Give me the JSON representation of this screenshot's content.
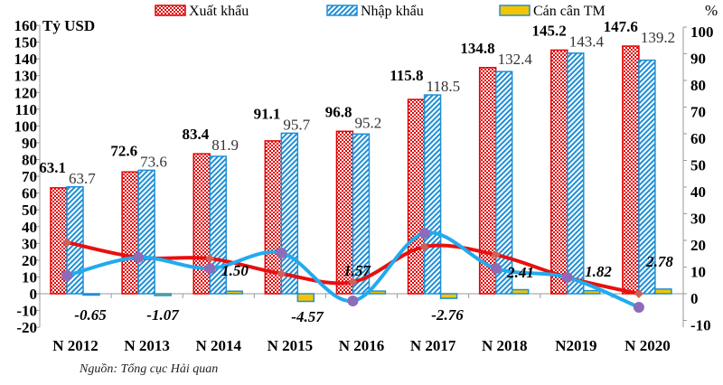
{
  "chart_data": {
    "type": "bar",
    "categories": [
      "N 2012",
      "N 2013",
      "N 2014",
      "N 2015",
      "N 2016",
      "N 2017",
      "N 2018",
      "N2019",
      "N 2020"
    ],
    "left_axis": {
      "label": "Tỷ USD",
      "ylim": [
        -20,
        160
      ],
      "ticks": [
        -20,
        -10,
        0,
        10,
        20,
        30,
        40,
        50,
        60,
        70,
        80,
        90,
        100,
        110,
        120,
        130,
        140,
        150,
        160
      ]
    },
    "right_axis": {
      "label": "%",
      "ylim": [
        -12.5,
        100
      ],
      "ticks": [
        -10,
        0,
        10,
        20,
        30,
        40,
        50,
        60,
        70,
        80,
        90,
        100
      ]
    },
    "series": [
      {
        "name": "Xuất khẩu",
        "type": "bar",
        "axis": "left",
        "color": "#e00000",
        "values": [
          63.1,
          72.6,
          83.4,
          91.1,
          96.8,
          115.8,
          134.8,
          145.2,
          147.6
        ],
        "labels": [
          "63.1",
          "72.6",
          "83.4",
          "91.1",
          "96.8",
          "115.8",
          "134.8",
          "145.2",
          "147.6"
        ]
      },
      {
        "name": "Nhập khẩu",
        "type": "bar",
        "axis": "left",
        "color": "#1e8fd6",
        "values": [
          63.7,
          73.6,
          81.9,
          95.7,
          95.2,
          118.5,
          132.4,
          143.4,
          139.2
        ],
        "labels": [
          "63.7",
          "73.6",
          "81.9",
          "95.7",
          "95.2",
          "118.5",
          "132.4",
          "143.4",
          "139.2"
        ]
      },
      {
        "name": "Cán cân TM",
        "type": "bar",
        "axis": "left",
        "color": "#f5c400",
        "values": [
          -0.65,
          -1.07,
          1.5,
          -4.57,
          1.57,
          -2.76,
          2.41,
          1.82,
          2.78
        ],
        "labels": [
          "-0.65",
          "-1.07",
          "1.50",
          "-4.57",
          "1.57",
          "-2.76",
          "2.41",
          "1.82",
          "2.78"
        ]
      },
      {
        "type": "line",
        "axis": "right",
        "color": "#e81010",
        "marker": "diamond",
        "values": [
          19.3,
          13.6,
          13.2,
          7.5,
          4.4,
          17.6,
          14.6,
          6.1,
          0
        ]
      },
      {
        "type": "line",
        "axis": "right",
        "color": "#22aaee",
        "marker": "circle",
        "marker_color": "#8e6bb8",
        "values": [
          6.8,
          13.6,
          9.5,
          15.3,
          -2.7,
          22.7,
          9.5,
          6.1,
          -5.1
        ]
      }
    ],
    "legend": "top",
    "grid": false
  },
  "source": "Nguồn: Tổng cục Hải quan"
}
